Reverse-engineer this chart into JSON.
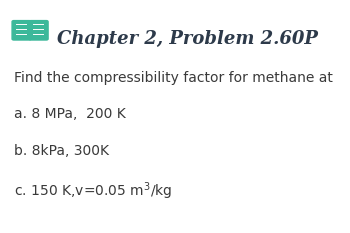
{
  "title": "Chapter 2, Problem 2.60P",
  "title_color": "#2d3a4a",
  "icon_color": "#3cb89a",
  "body_text": "Find the compressibility factor for methane at",
  "body_color": "#3a3a3a",
  "line_a": "a. 8 MPa,  200 K",
  "line_b": "b. 8kPa, 300K",
  "line_c": "c. 150 K,v=0.05 m$^3$/kg",
  "text_color": "#3a3a3a",
  "background_color": "#ffffff",
  "font_size_title": 13,
  "font_size_body": 10,
  "font_size_items": 10
}
